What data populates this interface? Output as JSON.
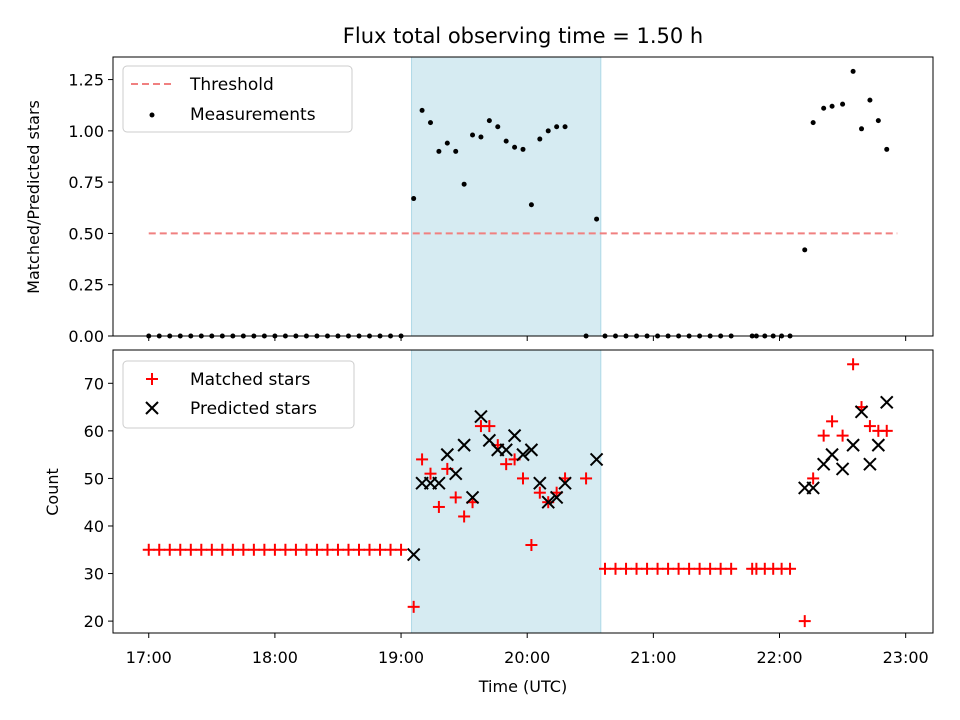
{
  "chart_data": [
    {
      "type": "scatter",
      "title": "Flux total observing time = 1.50 h",
      "xlabel": "",
      "ylabel": "Matched/Predicted stars",
      "xlim": [
        "16:43",
        "23:13"
      ],
      "ylim": [
        0,
        1.36
      ],
      "yticks": [
        "0.00",
        "0.25",
        "0.50",
        "0.75",
        "1.00",
        "1.25"
      ],
      "grid": false,
      "legend_position": "top-left",
      "highlight_span": {
        "start": "19:05",
        "end": "20:35",
        "color": "#add8e6"
      },
      "threshold": {
        "name": "Threshold",
        "value": 0.5,
        "x_start": "17:00",
        "x_end": "22:56",
        "color": "#f08080",
        "style": "dashed"
      },
      "series": [
        {
          "name": "Measurements",
          "color": "#000000",
          "marker": "dot",
          "points": [
            [
              "17:00",
              0
            ],
            [
              "17:05",
              0
            ],
            [
              "17:10",
              0
            ],
            [
              "17:15",
              0
            ],
            [
              "17:20",
              0
            ],
            [
              "17:25",
              0
            ],
            [
              "17:30",
              0
            ],
            [
              "17:35",
              0
            ],
            [
              "17:40",
              0
            ],
            [
              "17:45",
              0
            ],
            [
              "17:50",
              0
            ],
            [
              "17:55",
              0
            ],
            [
              "18:00",
              0
            ],
            [
              "18:05",
              0
            ],
            [
              "18:10",
              0
            ],
            [
              "18:15",
              0
            ],
            [
              "18:20",
              0
            ],
            [
              "18:25",
              0
            ],
            [
              "18:30",
              0
            ],
            [
              "18:35",
              0
            ],
            [
              "18:40",
              0
            ],
            [
              "18:45",
              0
            ],
            [
              "18:50",
              0
            ],
            [
              "18:55",
              0
            ],
            [
              "19:00",
              0
            ],
            [
              "19:06",
              0.67
            ],
            [
              "19:10",
              1.1
            ],
            [
              "19:14",
              1.04
            ],
            [
              "19:18",
              0.9
            ],
            [
              "19:22",
              0.94
            ],
            [
              "19:26",
              0.9
            ],
            [
              "19:30",
              0.74
            ],
            [
              "19:34",
              0.98
            ],
            [
              "19:38",
              0.97
            ],
            [
              "19:42",
              1.05
            ],
            [
              "19:46",
              1.02
            ],
            [
              "19:50",
              0.95
            ],
            [
              "19:54",
              0.92
            ],
            [
              "19:58",
              0.91
            ],
            [
              "20:02",
              0.64
            ],
            [
              "20:06",
              0.96
            ],
            [
              "20:10",
              1.0
            ],
            [
              "20:14",
              1.02
            ],
            [
              "20:18",
              1.02
            ],
            [
              "20:28",
              0
            ],
            [
              "20:33",
              0.57
            ],
            [
              "20:37",
              0
            ],
            [
              "20:42",
              0
            ],
            [
              "20:47",
              0
            ],
            [
              "20:52",
              0
            ],
            [
              "20:57",
              0
            ],
            [
              "21:02",
              0
            ],
            [
              "21:07",
              0
            ],
            [
              "21:12",
              0
            ],
            [
              "21:17",
              0
            ],
            [
              "21:22",
              0
            ],
            [
              "21:27",
              0
            ],
            [
              "21:32",
              0
            ],
            [
              "21:37",
              0
            ],
            [
              "21:47",
              0
            ],
            [
              "21:49",
              0
            ],
            [
              "21:53",
              0
            ],
            [
              "21:57",
              0
            ],
            [
              "22:01",
              0
            ],
            [
              "22:05",
              0
            ],
            [
              "22:12",
              0.42
            ],
            [
              "22:16",
              1.04
            ],
            [
              "22:21",
              1.11
            ],
            [
              "22:25",
              1.12
            ],
            [
              "22:30",
              1.13
            ],
            [
              "22:35",
              1.29
            ],
            [
              "22:39",
              1.01
            ],
            [
              "22:43",
              1.15
            ],
            [
              "22:47",
              1.05
            ],
            [
              "22:51",
              0.91
            ]
          ]
        }
      ]
    },
    {
      "type": "scatter",
      "title": "",
      "xlabel": "Time (UTC)",
      "ylabel": "Count",
      "xlim": [
        "16:43",
        "23:13"
      ],
      "ylim": [
        17.5,
        77
      ],
      "yticks": [
        "20",
        "30",
        "40",
        "50",
        "60",
        "70"
      ],
      "xticks": [
        "17:00",
        "18:00",
        "19:00",
        "20:00",
        "21:00",
        "22:00",
        "23:00"
      ],
      "grid": false,
      "legend_position": "top-left",
      "highlight_span": {
        "start": "19:05",
        "end": "20:35",
        "color": "#add8e6"
      },
      "series": [
        {
          "name": "Matched stars",
          "color": "#ff0000",
          "marker": "plus",
          "points": [
            [
              "17:00",
              35
            ],
            [
              "17:05",
              35
            ],
            [
              "17:10",
              35
            ],
            [
              "17:15",
              35
            ],
            [
              "17:20",
              35
            ],
            [
              "17:25",
              35
            ],
            [
              "17:30",
              35
            ],
            [
              "17:35",
              35
            ],
            [
              "17:40",
              35
            ],
            [
              "17:45",
              35
            ],
            [
              "17:50",
              35
            ],
            [
              "17:55",
              35
            ],
            [
              "18:00",
              35
            ],
            [
              "18:05",
              35
            ],
            [
              "18:10",
              35
            ],
            [
              "18:15",
              35
            ],
            [
              "18:20",
              35
            ],
            [
              "18:25",
              35
            ],
            [
              "18:30",
              35
            ],
            [
              "18:35",
              35
            ],
            [
              "18:40",
              35
            ],
            [
              "18:45",
              35
            ],
            [
              "18:50",
              35
            ],
            [
              "18:55",
              35
            ],
            [
              "19:00",
              35
            ],
            [
              "19:06",
              23
            ],
            [
              "19:10",
              54
            ],
            [
              "19:14",
              51
            ],
            [
              "19:18",
              44
            ],
            [
              "19:22",
              52
            ],
            [
              "19:26",
              46
            ],
            [
              "19:30",
              42
            ],
            [
              "19:34",
              45
            ],
            [
              "19:38",
              61
            ],
            [
              "19:42",
              61
            ],
            [
              "19:46",
              57
            ],
            [
              "19:50",
              53
            ],
            [
              "19:54",
              54
            ],
            [
              "19:58",
              50
            ],
            [
              "20:02",
              36
            ],
            [
              "20:06",
              47
            ],
            [
              "20:10",
              45
            ],
            [
              "20:14",
              47
            ],
            [
              "20:18",
              50
            ],
            [
              "20:28",
              50
            ],
            [
              "20:37",
              31
            ],
            [
              "20:42",
              31
            ],
            [
              "20:47",
              31
            ],
            [
              "20:52",
              31
            ],
            [
              "20:57",
              31
            ],
            [
              "21:02",
              31
            ],
            [
              "21:07",
              31
            ],
            [
              "21:12",
              31
            ],
            [
              "21:17",
              31
            ],
            [
              "21:22",
              31
            ],
            [
              "21:27",
              31
            ],
            [
              "21:32",
              31
            ],
            [
              "21:37",
              31
            ],
            [
              "21:47",
              31
            ],
            [
              "21:49",
              31
            ],
            [
              "21:53",
              31
            ],
            [
              "21:57",
              31
            ],
            [
              "22:01",
              31
            ],
            [
              "22:05",
              31
            ],
            [
              "22:12",
              20
            ],
            [
              "22:16",
              50
            ],
            [
              "22:21",
              59
            ],
            [
              "22:25",
              62
            ],
            [
              "22:30",
              59
            ],
            [
              "22:35",
              74
            ],
            [
              "22:39",
              65
            ],
            [
              "22:43",
              61
            ],
            [
              "22:47",
              60
            ],
            [
              "22:51",
              60
            ]
          ]
        },
        {
          "name": "Predicted stars",
          "color": "#000000",
          "marker": "x",
          "points": [
            [
              "19:06",
              34
            ],
            [
              "19:10",
              49
            ],
            [
              "19:14",
              49
            ],
            [
              "19:18",
              49
            ],
            [
              "19:22",
              55
            ],
            [
              "19:26",
              51
            ],
            [
              "19:30",
              57
            ],
            [
              "19:34",
              46
            ],
            [
              "19:38",
              63
            ],
            [
              "19:42",
              58
            ],
            [
              "19:46",
              56
            ],
            [
              "19:50",
              56
            ],
            [
              "19:54",
              59
            ],
            [
              "19:58",
              55
            ],
            [
              "20:02",
              56
            ],
            [
              "20:06",
              49
            ],
            [
              "20:10",
              45
            ],
            [
              "20:14",
              46
            ],
            [
              "20:18",
              49
            ],
            [
              "20:33",
              54
            ],
            [
              "22:12",
              48
            ],
            [
              "22:16",
              48
            ],
            [
              "22:21",
              53
            ],
            [
              "22:25",
              55
            ],
            [
              "22:30",
              52
            ],
            [
              "22:35",
              57
            ],
            [
              "22:39",
              64
            ],
            [
              "22:43",
              53
            ],
            [
              "22:47",
              57
            ],
            [
              "22:51",
              66
            ]
          ]
        }
      ]
    }
  ]
}
